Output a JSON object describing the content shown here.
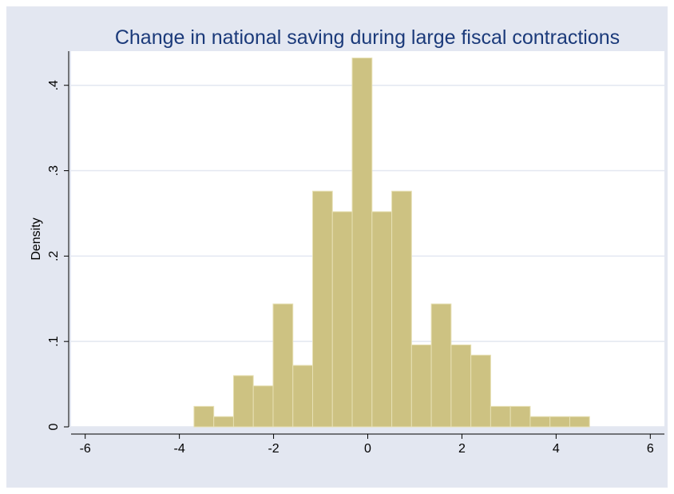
{
  "colors": {
    "background": "#e3e7f1",
    "plot_area": "#ffffff",
    "bar_fill": "#cdc282",
    "bar_edge": "#e7e0b4",
    "grid": "#e3e7f1",
    "title": "#1b3a7a",
    "axis": "#000000"
  },
  "chart_data": {
    "type": "bar",
    "subtype": "histogram",
    "title": "Change in national saving during large fiscal contractions",
    "xlabel": "",
    "ylabel": "Density",
    "xlim": [
      -6.3,
      6.3
    ],
    "ylim": [
      0,
      0.44
    ],
    "xticks": [
      -6,
      -4,
      -2,
      0,
      2,
      4,
      6
    ],
    "xtick_labels": [
      "-6",
      "-4",
      "-2",
      "0",
      "2",
      "4",
      "6"
    ],
    "yticks": [
      0,
      0.1,
      0.2,
      0.3,
      0.4
    ],
    "ytick_labels": [
      "0",
      ".1",
      ".2",
      ".3",
      ".4"
    ],
    "grid": true,
    "bin_width": 0.42,
    "bin_starts": [
      -3.69,
      -3.27,
      -2.85,
      -2.43,
      -2.01,
      -1.59,
      -1.17,
      -0.75,
      -0.33,
      0.09,
      0.51,
      0.93,
      1.35,
      1.77,
      2.19,
      2.61,
      3.03,
      3.45,
      3.87,
      4.29
    ],
    "values": [
      0.024,
      0.012,
      0.06,
      0.048,
      0.144,
      0.072,
      0.276,
      0.252,
      0.432,
      0.252,
      0.276,
      0.096,
      0.144,
      0.096,
      0.084,
      0.024,
      0.024,
      0.012,
      0.012,
      0.012
    ]
  }
}
